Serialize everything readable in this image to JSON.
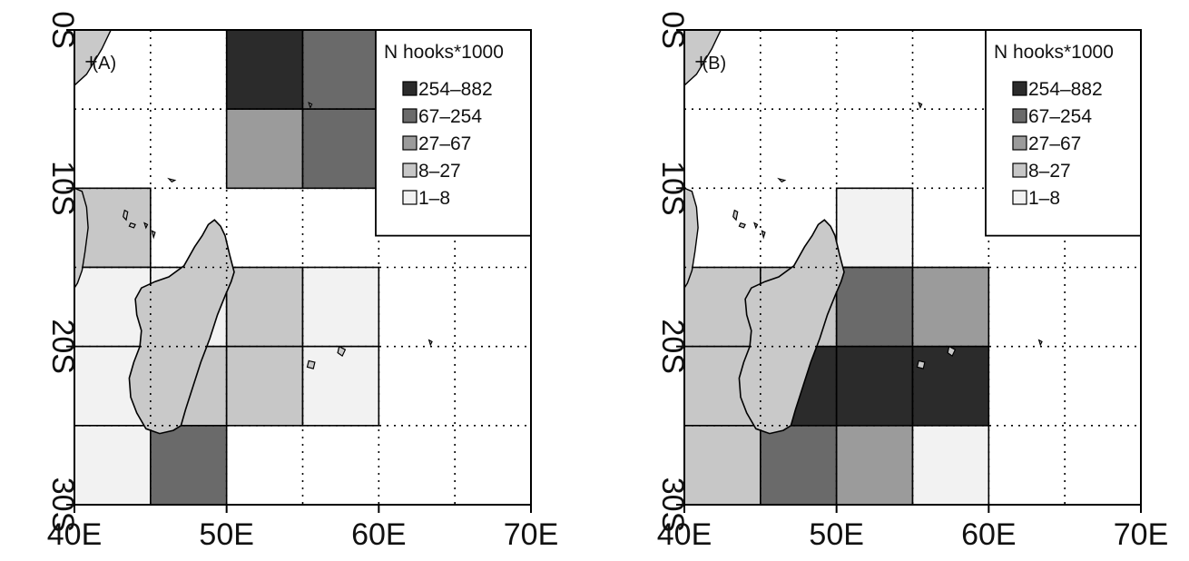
{
  "figure": {
    "x_ticks": [
      "40E",
      "50E",
      "60E",
      "70E"
    ],
    "y_ticks": [
      "0S",
      "10S",
      "20S",
      "30S"
    ],
    "legend": {
      "title": "N hooks*1000",
      "classes": [
        "254–882",
        "67–254",
        "27–67",
        "8–27",
        "1–8"
      ],
      "fills": [
        "#2b2b2b",
        "#6a6a6a",
        "#9b9b9b",
        "#c7c7c7",
        "#f2f2f2"
      ]
    },
    "land_color": "#c9c9c9",
    "grid": "dotted, every 5 degrees"
  },
  "panels": [
    {
      "label": "(A)",
      "cells": [
        {
          "lon": 50,
          "lat": 0,
          "cls": 0
        },
        {
          "lon": 55,
          "lat": 0,
          "cls": 1
        },
        {
          "lon": 50,
          "lat": 5,
          "cls": 2
        },
        {
          "lon": 55,
          "lat": 5,
          "cls": 1
        },
        {
          "lon": 40,
          "lat": 10,
          "cls": 3
        },
        {
          "lon": 40,
          "lat": 15,
          "cls": 4
        },
        {
          "lon": 45,
          "lat": 15,
          "cls": 4
        },
        {
          "lon": 50,
          "lat": 15,
          "cls": 3
        },
        {
          "lon": 55,
          "lat": 15,
          "cls": 4
        },
        {
          "lon": 40,
          "lat": 20,
          "cls": 4
        },
        {
          "lon": 45,
          "lat": 20,
          "cls": 3
        },
        {
          "lon": 50,
          "lat": 20,
          "cls": 3
        },
        {
          "lon": 55,
          "lat": 20,
          "cls": 4
        },
        {
          "lon": 40,
          "lat": 25,
          "cls": 4
        },
        {
          "lon": 45,
          "lat": 25,
          "cls": 1
        }
      ]
    },
    {
      "label": "(B)",
      "cells": [
        {
          "lon": 50,
          "lat": 10,
          "cls": 4
        },
        {
          "lon": 40,
          "lat": 15,
          "cls": 3
        },
        {
          "lon": 45,
          "lat": 15,
          "cls": 3
        },
        {
          "lon": 50,
          "lat": 15,
          "cls": 1
        },
        {
          "lon": 55,
          "lat": 15,
          "cls": 2
        },
        {
          "lon": 40,
          "lat": 20,
          "cls": 3
        },
        {
          "lon": 45,
          "lat": 20,
          "cls": 0
        },
        {
          "lon": 50,
          "lat": 20,
          "cls": 0
        },
        {
          "lon": 55,
          "lat": 20,
          "cls": 0
        },
        {
          "lon": 40,
          "lat": 25,
          "cls": 3
        },
        {
          "lon": 45,
          "lat": 25,
          "cls": 1
        },
        {
          "lon": 50,
          "lat": 25,
          "cls": 2
        },
        {
          "lon": 55,
          "lat": 25,
          "cls": 4
        }
      ]
    }
  ]
}
